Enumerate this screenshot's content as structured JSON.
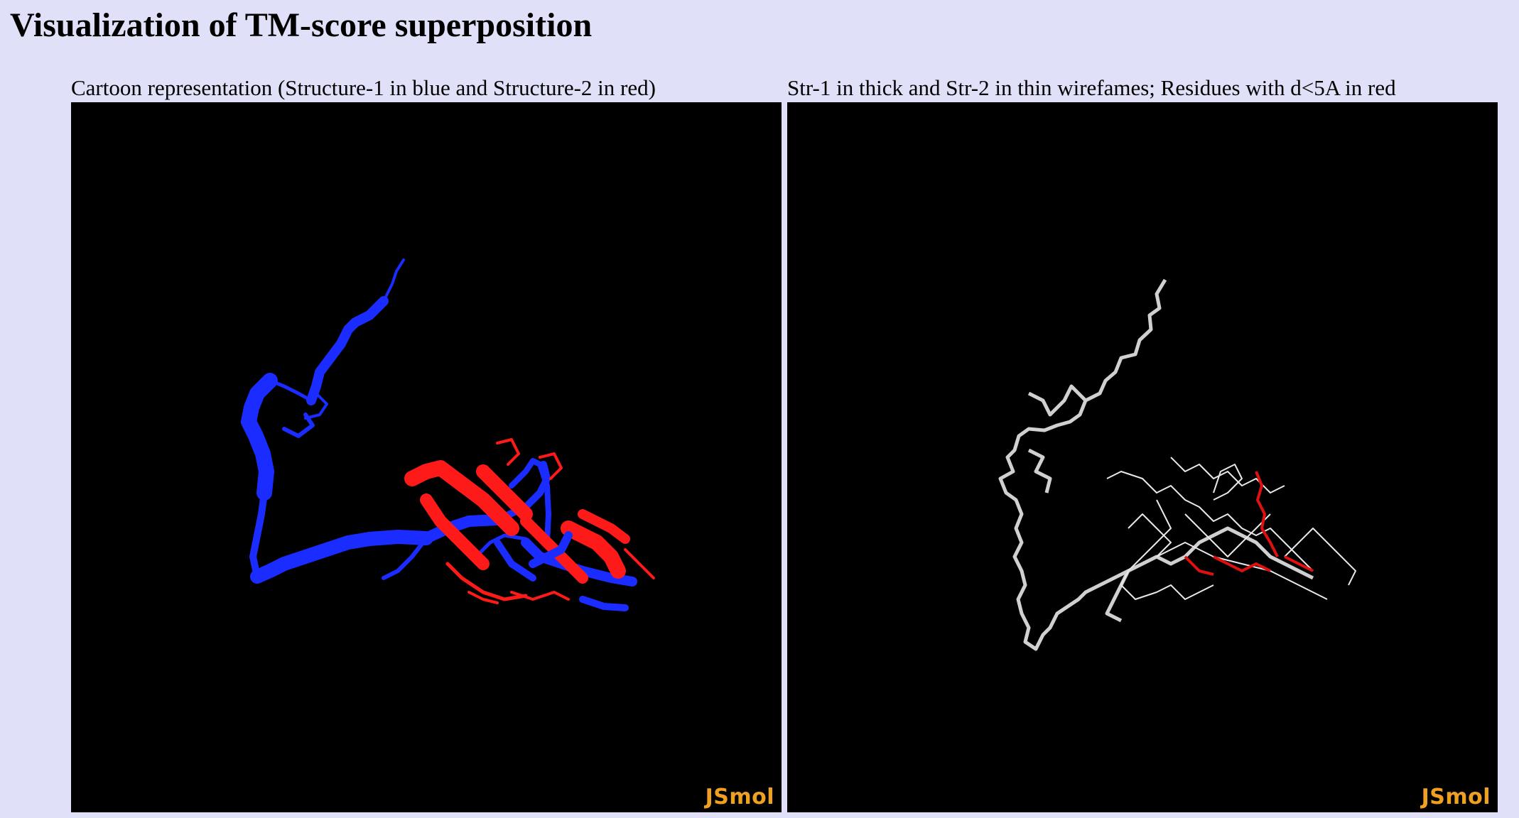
{
  "page": {
    "title": "Visualization of TM-score superposition"
  },
  "panels": [
    {
      "caption": "Cartoon representation (Structure-1 in blue and Structure-2 in red)",
      "logo": "JSmol",
      "colors": {
        "structure1": "#1a2cff",
        "structure2": "#ff1a1a",
        "background": "#000000"
      }
    },
    {
      "caption": "Str-1 in thick and Str-2 in thin wirefames; Residues with d<5A in red",
      "logo": "JSmol",
      "colors": {
        "wire": "#d0d0d0",
        "close_residues": "#e01010",
        "background": "#000000"
      }
    }
  ],
  "colors": {
    "page_background": "#e0e0f8",
    "logo": "#f0a020"
  }
}
